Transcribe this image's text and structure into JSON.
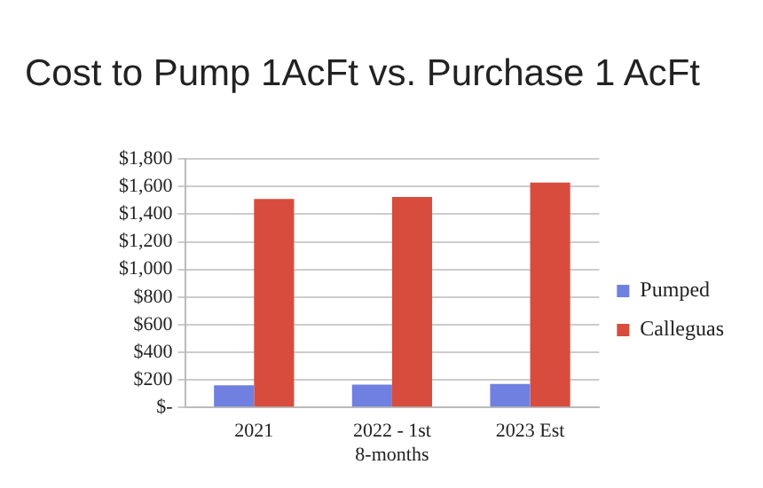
{
  "chart_data": {
    "type": "bar",
    "title": "Cost to Pump 1AcFt vs. Purchase 1 AcFt",
    "categories": [
      "2021",
      "2022 - 1st 8-months",
      "2023 Est"
    ],
    "series": [
      {
        "name": "Pumped",
        "color": "#7080e0",
        "values": [
          160,
          165,
          170
        ]
      },
      {
        "name": "Calleguas",
        "color": "#d84c3e",
        "values": [
          1510,
          1525,
          1630
        ]
      }
    ],
    "ylim": [
      0,
      1800
    ],
    "yticks": [
      {
        "value": 0,
        "label": "$-"
      },
      {
        "value": 200,
        "label": "$200"
      },
      {
        "value": 400,
        "label": "$400"
      },
      {
        "value": 600,
        "label": "$600"
      },
      {
        "value": 800,
        "label": "$800"
      },
      {
        "value": 1000,
        "label": "$1,000"
      },
      {
        "value": 1200,
        "label": "$1,200"
      },
      {
        "value": 1400,
        "label": "$1,400"
      },
      {
        "value": 1600,
        "label": "$1,600"
      },
      {
        "value": 1800,
        "label": "$1,800"
      }
    ],
    "grid": "y",
    "legend": "right"
  }
}
